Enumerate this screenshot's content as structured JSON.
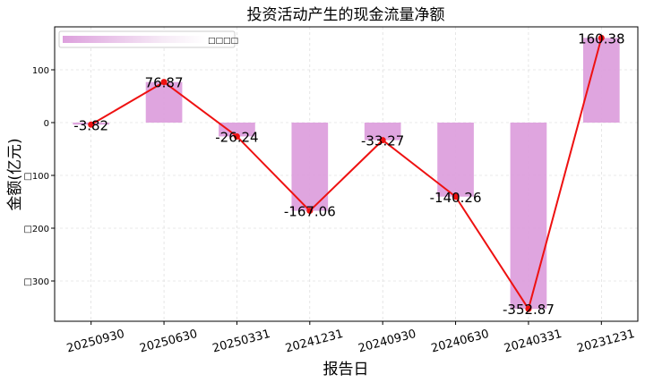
{
  "chart_data": {
    "type": "bar",
    "title": "投资活动产生的现金流量净额",
    "xlabel": "报告日",
    "ylabel": "金额(亿元)",
    "categories": [
      "20250930",
      "20250630",
      "20250331",
      "20241231",
      "20240930",
      "20240630",
      "20240331",
      "20231231"
    ],
    "values": [
      -3.82,
      76.87,
      -26.24,
      -167.06,
      -33.27,
      -140.26,
      -352.87,
      160.38
    ],
    "data_labels": [
      "-3.82",
      "76.87",
      "-26.24",
      "-167.06",
      "-33.27",
      "-140.26",
      "-352.87",
      "160.38"
    ],
    "yticks": [
      100,
      0,
      -100,
      -200,
      -300
    ],
    "ytick_labels": [
      "100",
      "0",
      "□100",
      "□200",
      "□300"
    ],
    "ylim": [
      -380,
      180
    ],
    "grid": true,
    "legend_position": "top-left",
    "legend_label": "□□□□",
    "bar_color": "#DDA0DD",
    "line_color": "#EE1111"
  }
}
